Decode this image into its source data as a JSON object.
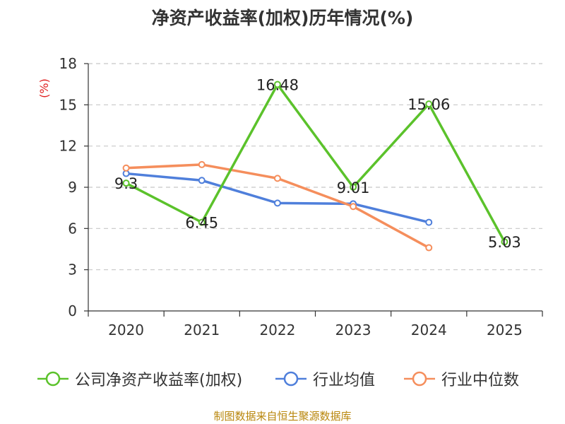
{
  "chart_data": {
    "type": "line",
    "title": "净资产收益率(加权)历年情况(%)",
    "ylabel": "(%)",
    "xlabel": "",
    "categories": [
      "2020",
      "2021",
      "2022",
      "2023",
      "2024",
      "2025"
    ],
    "ylim": [
      0,
      18
    ],
    "yticks": [
      0,
      3,
      6,
      9,
      12,
      15,
      18
    ],
    "grid": true,
    "series": [
      {
        "name": "公司净资产收益率(加权)",
        "color": "#5bc22b",
        "values": [
          9.3,
          6.45,
          16.48,
          9.01,
          15.06,
          5.03
        ],
        "labels": [
          "9.3",
          "6.45",
          "16.48",
          "9.01",
          "15.06",
          "5.03"
        ]
      },
      {
        "name": "行业均值",
        "color": "#4f7fdb",
        "values": [
          10.0,
          9.5,
          7.85,
          7.8,
          6.45,
          null
        ]
      },
      {
        "name": "行业中位数",
        "color": "#f58e5c",
        "values": [
          10.4,
          10.65,
          9.65,
          7.6,
          4.6,
          null
        ]
      }
    ],
    "legend_position": "bottom"
  },
  "source": "制图数据来自恒生聚源数据库"
}
